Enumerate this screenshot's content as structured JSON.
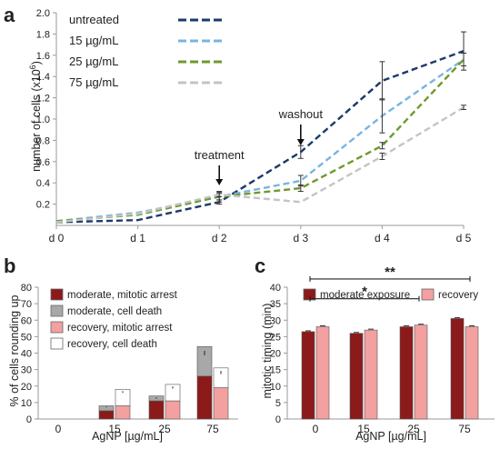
{
  "chart_data": [
    {
      "panel": "a",
      "type": "line",
      "ylabel": "number of cells (x10",
      "ylabel_sup": "6",
      "ylabel_end": ")",
      "categories": [
        "d 0",
        "d 1",
        "d 2",
        "d 3",
        "d 4",
        "d 5"
      ],
      "yticks": [
        "0.2",
        "0.4",
        "0.6",
        "0.8",
        "1.0",
        "1.2",
        "1.4",
        "1.6",
        "1.8",
        "2.0"
      ],
      "ylim": [
        0,
        2.0
      ],
      "grid": false,
      "legend": "top-left",
      "series": [
        {
          "name": "untreated",
          "color": "#1b3a6b",
          "values": [
            0.03,
            0.05,
            0.22,
            0.69,
            1.36,
            1.64
          ],
          "err": [
            0.01,
            0.01,
            0.02,
            0.06,
            0.18,
            0.18
          ]
        },
        {
          "name": "15 µg/mL",
          "color": "#7ab4e0",
          "values": [
            0.04,
            0.12,
            0.27,
            0.42,
            1.03,
            1.56
          ],
          "err": [
            0.01,
            0.01,
            0.03,
            0.05,
            0.16,
            0.06
          ]
        },
        {
          "name": "25 µg/mL",
          "color": "#6e9a2e",
          "values": [
            0.04,
            0.1,
            0.27,
            0.35,
            0.75,
            1.56
          ],
          "err": [
            0.01,
            0.01,
            0.05,
            0.03,
            0.03,
            0.06
          ]
        },
        {
          "name": "75 µg/mL",
          "color": "#c4c4c4",
          "values": [
            0.03,
            0.11,
            0.29,
            0.22,
            0.65,
            1.11
          ],
          "err": [
            0.01,
            0.01,
            0.02,
            0.01,
            0.03,
            0.02
          ]
        }
      ],
      "annotations": [
        {
          "text": "treatment",
          "category": "d 2"
        },
        {
          "text": "washout",
          "category": "d 3"
        }
      ]
    },
    {
      "panel": "b",
      "type": "bar",
      "stacked": true,
      "ylabel": "% of cells rounding up",
      "xlabel": "AgNP [µg/mL]",
      "categories": [
        "0",
        "15",
        "25",
        "75"
      ],
      "yticks": [
        "0",
        "10",
        "20",
        "30",
        "40",
        "50",
        "60",
        "70",
        "80"
      ],
      "ylim": [
        0,
        80
      ],
      "legend": "top-left",
      "series": [
        {
          "name": "moderate, mitotic arrest",
          "color": "#8b1a1a",
          "group": "moderate",
          "values": [
            0,
            5,
            11,
            26
          ]
        },
        {
          "name": "moderate, cell death",
          "color": "#a8a8a8",
          "group": "moderate",
          "values": [
            0,
            3,
            3,
            18
          ]
        },
        {
          "name": "recovery, mitotic arrest",
          "color": "#f2a0a0",
          "group": "recovery",
          "values": [
            0,
            8,
            11,
            19
          ]
        },
        {
          "name": "recovery, cell death",
          "color": "#ffffff",
          "group": "recovery",
          "values": [
            0,
            10,
            10,
            12
          ]
        }
      ]
    },
    {
      "panel": "c",
      "type": "bar",
      "ylabel": "mitotic timing (min)",
      "xlabel": "AgNP [µg/mL]",
      "categories": [
        "0",
        "15",
        "25",
        "75"
      ],
      "yticks": [
        "0",
        "5",
        "10",
        "15",
        "20",
        "25",
        "30",
        "35",
        "40"
      ],
      "ylim": [
        0,
        40
      ],
      "legend": "top",
      "series": [
        {
          "name": "moderate exposure",
          "color": "#8b1a1a",
          "values": [
            26.5,
            26.0,
            28.0,
            30.5
          ]
        },
        {
          "name": "recovery",
          "color": "#f2a0a0",
          "values": [
            28.0,
            27.0,
            28.5,
            28.0
          ]
        }
      ],
      "significance": [
        {
          "text": "**",
          "from": "0",
          "to": "75",
          "y": 42.5
        },
        {
          "text": "*",
          "from": "0",
          "to": "25",
          "y": 36.5
        }
      ]
    }
  ]
}
